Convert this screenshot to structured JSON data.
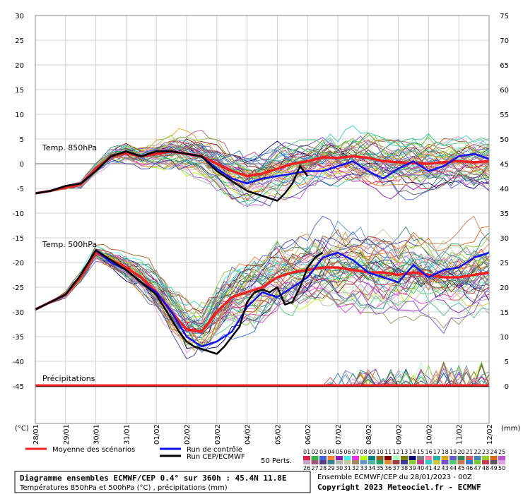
{
  "chart_data": {
    "type": "line",
    "left_axis": {
      "unit": "(°C)",
      "ticks": [
        30,
        25,
        20,
        15,
        10,
        5,
        0,
        -5,
        -10,
        -15,
        -20,
        -25,
        -30,
        -35,
        -40,
        -45
      ],
      "range": [
        -45,
        30
      ]
    },
    "right_axis": {
      "unit": "(mm)",
      "ticks": [
        75,
        70,
        65,
        60,
        55,
        50,
        45,
        40,
        35,
        30,
        25,
        20,
        15,
        10,
        5,
        0
      ],
      "range": [
        0,
        75
      ]
    },
    "x_ticks": [
      "28/01",
      "29/01",
      "30/01",
      "31/01",
      "01/02",
      "02/02",
      "03/02",
      "04/02",
      "05/02",
      "06/02",
      "07/02",
      "08/02",
      "09/02",
      "10/02",
      "11/02",
      "12/02"
    ],
    "x_range_hours": [
      0,
      360
    ],
    "panel_labels": {
      "t850": "Temp. 850hPa",
      "t500": "Temp. 500hPa",
      "precip": "Précipitations"
    },
    "grid": true,
    "series": [
      {
        "name": "Moyenne des scénarios",
        "color": "#ee2222",
        "panel": "t850",
        "x": [
          0,
          12,
          24,
          36,
          48,
          60,
          72,
          84,
          96,
          108,
          120,
          132,
          144,
          156,
          168,
          180,
          192,
          204,
          216,
          228,
          240,
          252,
          264,
          276,
          288,
          300,
          312,
          324,
          336,
          348,
          360
        ],
        "y": [
          -6,
          -5.5,
          -4.8,
          -4.2,
          -1,
          1.5,
          2.2,
          1.5,
          2,
          2.5,
          2,
          1.5,
          0,
          -1.5,
          -2.5,
          -2,
          -1,
          0,
          0.5,
          1.3,
          1.2,
          1.5,
          1.2,
          0.5,
          0.3,
          0.1,
          0,
          0.3,
          0.5,
          0.3,
          0.5
        ]
      },
      {
        "name": "Run de contrôle",
        "color": "#1111ee",
        "panel": "t850",
        "x": [
          0,
          12,
          24,
          36,
          48,
          60,
          72,
          84,
          96,
          108,
          120,
          132,
          144,
          156,
          168,
          180,
          192,
          204,
          216,
          228,
          240,
          252,
          264,
          276,
          288,
          300,
          312,
          324,
          336,
          348,
          360
        ],
        "y": [
          -6,
          -5.5,
          -4.5,
          -4,
          -1.5,
          1.5,
          2.5,
          1.5,
          2.5,
          2.5,
          2,
          1.5,
          -1,
          -3,
          -4,
          -3,
          -2.5,
          -2,
          -1.5,
          -1.5,
          -0.5,
          0.5,
          -1.5,
          -3,
          -1,
          0.5,
          -1.5,
          -0.5,
          1.5,
          2,
          1
        ]
      },
      {
        "name": "Run CEP/ECMWF",
        "color": "#000000",
        "panel": "t850",
        "x": [
          0,
          12,
          24,
          36,
          48,
          60,
          72,
          84,
          96,
          108,
          120,
          132,
          144,
          156,
          162,
          168,
          174,
          180,
          186,
          192,
          198,
          204,
          210,
          216
        ],
        "y": [
          -6,
          -5.5,
          -4.5,
          -4,
          -1.5,
          1.5,
          2.5,
          1.5,
          2.5,
          2.5,
          2,
          1.5,
          -1.5,
          -3.5,
          -4.5,
          -5.5,
          -6,
          -6.5,
          -7,
          -7.5,
          -6,
          -4,
          -0.5,
          -2.5
        ]
      },
      {
        "name": "Moyenne des scénarios",
        "color": "#ee2222",
        "panel": "t500",
        "x": [
          0,
          12,
          24,
          36,
          48,
          60,
          72,
          84,
          96,
          108,
          120,
          132,
          144,
          156,
          168,
          180,
          192,
          204,
          216,
          228,
          240,
          252,
          264,
          276,
          288,
          300,
          312,
          324,
          336,
          348,
          360
        ],
        "y": [
          -29.5,
          -28,
          -26.5,
          -23,
          -18,
          -19.5,
          -21,
          -23,
          -26,
          -30,
          -33.5,
          -34,
          -30,
          -27,
          -26,
          -25,
          -23,
          -22,
          -21.5,
          -21,
          -21,
          -21.5,
          -22,
          -22,
          -22.5,
          -22,
          -22.5,
          -23,
          -23,
          -22.5,
          -22
        ]
      },
      {
        "name": "Run de contrôle",
        "color": "#1111ee",
        "panel": "t500",
        "x": [
          0,
          12,
          24,
          36,
          48,
          60,
          72,
          84,
          96,
          108,
          120,
          132,
          144,
          156,
          168,
          180,
          192,
          204,
          216,
          228,
          240,
          252,
          264,
          276,
          288,
          300,
          312,
          324,
          336,
          348,
          360
        ],
        "y": [
          -29.5,
          -28,
          -26.5,
          -22.5,
          -17.5,
          -20,
          -21.5,
          -24,
          -26,
          -30,
          -35,
          -37,
          -36,
          -34,
          -29,
          -26,
          -27,
          -25,
          -23,
          -19,
          -18,
          -19.5,
          -22,
          -23,
          -24,
          -20.5,
          -23,
          -21.5,
          -21,
          -19,
          -18
        ]
      },
      {
        "name": "Run CEP/ECMWF",
        "color": "#000000",
        "panel": "t500",
        "x": [
          0,
          12,
          24,
          36,
          48,
          60,
          72,
          84,
          96,
          102,
          108,
          114,
          120,
          126,
          132,
          138,
          144,
          150,
          156,
          162,
          168,
          174,
          180,
          186,
          192,
          198,
          204,
          210,
          216,
          222,
          228
        ],
        "y": [
          -29.5,
          -28,
          -26.5,
          -22.5,
          -17.5,
          -19.5,
          -21.5,
          -24,
          -26.5,
          -29,
          -31.5,
          -34,
          -36,
          -37,
          -37.5,
          -38,
          -38.5,
          -37,
          -35,
          -33,
          -28,
          -26,
          -25.5,
          -26,
          -25,
          -28.5,
          -28,
          -25,
          -21,
          -19,
          -18
        ]
      }
    ]
  },
  "legend": {
    "items": [
      {
        "label": "Moyenne des scénarios",
        "color": "#ee2222"
      },
      {
        "label": "Run de contrôle",
        "color": "#1111ee"
      },
      {
        "label": "Run CEP/ECMWF",
        "color": "#000000"
      }
    ],
    "perts_label": "50 Perts.",
    "perts_row1": [
      "01",
      "02",
      "03",
      "04",
      "05",
      "06",
      "07",
      "08",
      "09",
      "10",
      "11",
      "12",
      "13",
      "14",
      "15",
      "16",
      "17",
      "18",
      "19",
      "20",
      "21",
      "22",
      "23",
      "24",
      "25"
    ],
    "perts_row2": [
      "26",
      "27",
      "28",
      "29",
      "30",
      "31",
      "32",
      "33",
      "34",
      "35",
      "36",
      "37",
      "38",
      "39",
      "40",
      "41",
      "42",
      "43",
      "44",
      "45",
      "46",
      "47",
      "48",
      "49",
      "50"
    ]
  },
  "footer": {
    "title": "Diagramme ensembles ECMWF/CEP 0.4° sur 360h : 45.4N 11.8E",
    "subtitle": "Températures 850hPa et 500hPa (°C) , précipitations (mm)",
    "run_info": "Ensemble ECMWF/CEP du 28/01/2023 - 00Z",
    "copyright": "Copyright 2023 Meteociel.fr - ECMWF"
  },
  "palette": [
    "#e6194b",
    "#3cb44b",
    "#4363d8",
    "#f58231",
    "#911eb4",
    "#46f0f0",
    "#f032e6",
    "#bcf60c",
    "#008080",
    "#9a6324",
    "#800000",
    "#aaffc3",
    "#808000",
    "#000075",
    "#808080",
    "#ff7fa0",
    "#20b2aa",
    "#daa520",
    "#6a5acd",
    "#2e8b57",
    "#cd5c5c",
    "#4682b4",
    "#9acd32",
    "#d2691e",
    "#ba55d3",
    "#c8a0c8",
    "#a05a78",
    "#5a3c82",
    "#3c8296",
    "#b4b4b4",
    "#c8c8a0",
    "#a08c64",
    "#6496c8",
    "#50b4a0",
    "#28a064",
    "#dc8c3c",
    "#a03c3c",
    "#3c3c9a",
    "#8cc83c",
    "#c83c8c",
    "#3cc8c8",
    "#c8c83c",
    "#7850c8",
    "#50c878",
    "#c87850",
    "#3c78c8",
    "#78c83c",
    "#c83c50",
    "#5a5a5a",
    "#e0a0e0"
  ]
}
